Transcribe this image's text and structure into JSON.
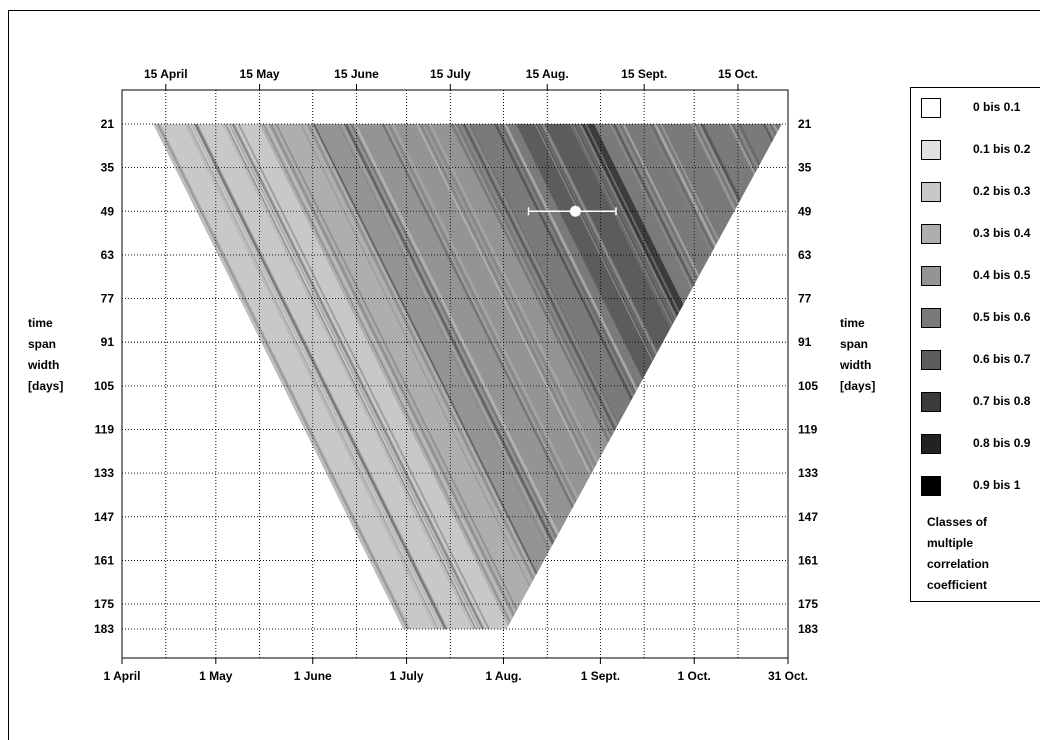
{
  "chart_data": {
    "type": "heatmap",
    "x_axis": {
      "range": [
        "1 April",
        "31 Oct."
      ],
      "bottom_ticks": [
        "1 April",
        "1 May",
        "1 June",
        "1 July",
        "1 Aug.",
        "1 Sept.",
        "1 Oct.",
        "31 Oct."
      ],
      "top_ticks": [
        "15 April",
        "15 May",
        "15 June",
        "15 July",
        "15 Aug.",
        "15 Sept.",
        "15 Oct."
      ]
    },
    "y_axis": {
      "label": [
        "time",
        "span",
        "width",
        "[days]"
      ],
      "ticks": [
        21,
        35,
        49,
        63,
        77,
        91,
        105,
        119,
        133,
        147,
        161,
        175,
        183
      ],
      "range": [
        183,
        21
      ]
    },
    "grid": true,
    "coverage": {
      "description_free_values": true,
      "top_row_span_days": 21,
      "top_row_x_range": [
        "11 April",
        "29 Oct."
      ],
      "bottom_row_span_days": 183,
      "bottom_row_x_range": [
        "30 June",
        "2 Aug."
      ]
    },
    "class_bands": [
      {
        "from": "8 April",
        "to": "15 May",
        "class": 2
      },
      {
        "from": "15 May",
        "to": "1 June",
        "class": 3
      },
      {
        "from": "1 June",
        "to": "25 June",
        "class": 4
      },
      {
        "from": "25 June",
        "to": "15 July",
        "class": 4
      },
      {
        "from": "15 July",
        "to": "5 Aug.",
        "class": 5
      },
      {
        "from": "5 Aug.",
        "to": "25 Aug.",
        "class": 6
      },
      {
        "from": "25 Aug.",
        "to": "30 Aug.",
        "class": 7
      },
      {
        "from": "30 Aug.",
        "to": "29 Oct.",
        "class": 5
      }
    ],
    "marker": {
      "center": "24 Aug.",
      "span_days": 49,
      "range": [
        "9 Aug.",
        "6 Sept."
      ]
    },
    "legend": {
      "placement": "right",
      "title": [
        "Classes of",
        "multiple",
        "correlation",
        "coefficient"
      ],
      "entries": [
        {
          "label": "0 bis 0.1",
          "color": "#ffffff"
        },
        {
          "label": "0.1 bis 0.2",
          "color": "#e1e1e1"
        },
        {
          "label": "0.2 bis 0.3",
          "color": "#c8c8c8"
        },
        {
          "label": "0.3 bis 0.4",
          "color": "#aeaeae"
        },
        {
          "label": "0.4 bis 0.5",
          "color": "#949494"
        },
        {
          "label": "0.5 bis 0.6",
          "color": "#7a7a7a"
        },
        {
          "label": "0.6 bis 0.7",
          "color": "#5c5c5c"
        },
        {
          "label": "0.7 bis 0.8",
          "color": "#3c3c3c"
        },
        {
          "label": "0.8 bis 0.9",
          "color": "#222222"
        },
        {
          "label": "0.9 bis 1",
          "color": "#000000"
        }
      ]
    }
  }
}
